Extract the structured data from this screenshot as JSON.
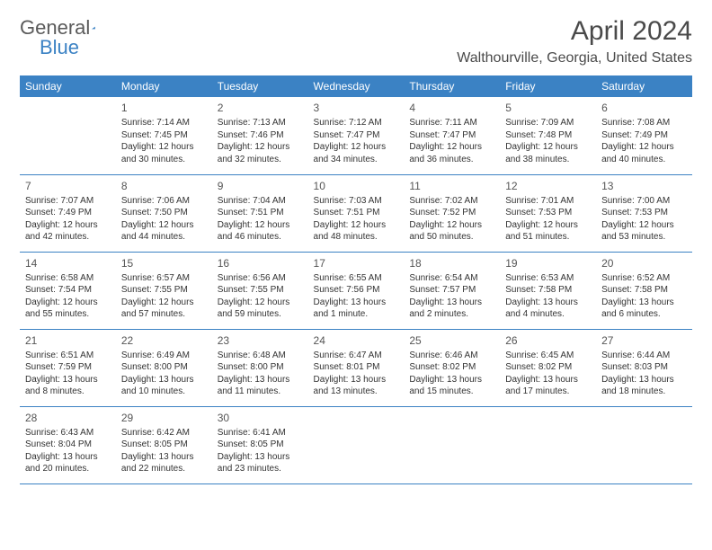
{
  "brand": {
    "part1": "General",
    "part2": "Blue"
  },
  "title": "April 2024",
  "location": "Walthourville, Georgia, United States",
  "colors": {
    "accent": "#3b82c4",
    "text": "#333333",
    "header_text": "#ffffff",
    "bg": "#ffffff"
  },
  "day_headers": [
    "Sunday",
    "Monday",
    "Tuesday",
    "Wednesday",
    "Thursday",
    "Friday",
    "Saturday"
  ],
  "weeks": [
    [
      null,
      {
        "n": "1",
        "sr": "7:14 AM",
        "ss": "7:45 PM",
        "dl": "12 hours and 30 minutes."
      },
      {
        "n": "2",
        "sr": "7:13 AM",
        "ss": "7:46 PM",
        "dl": "12 hours and 32 minutes."
      },
      {
        "n": "3",
        "sr": "7:12 AM",
        "ss": "7:47 PM",
        "dl": "12 hours and 34 minutes."
      },
      {
        "n": "4",
        "sr": "7:11 AM",
        "ss": "7:47 PM",
        "dl": "12 hours and 36 minutes."
      },
      {
        "n": "5",
        "sr": "7:09 AM",
        "ss": "7:48 PM",
        "dl": "12 hours and 38 minutes."
      },
      {
        "n": "6",
        "sr": "7:08 AM",
        "ss": "7:49 PM",
        "dl": "12 hours and 40 minutes."
      }
    ],
    [
      {
        "n": "7",
        "sr": "7:07 AM",
        "ss": "7:49 PM",
        "dl": "12 hours and 42 minutes."
      },
      {
        "n": "8",
        "sr": "7:06 AM",
        "ss": "7:50 PM",
        "dl": "12 hours and 44 minutes."
      },
      {
        "n": "9",
        "sr": "7:04 AM",
        "ss": "7:51 PM",
        "dl": "12 hours and 46 minutes."
      },
      {
        "n": "10",
        "sr": "7:03 AM",
        "ss": "7:51 PM",
        "dl": "12 hours and 48 minutes."
      },
      {
        "n": "11",
        "sr": "7:02 AM",
        "ss": "7:52 PM",
        "dl": "12 hours and 50 minutes."
      },
      {
        "n": "12",
        "sr": "7:01 AM",
        "ss": "7:53 PM",
        "dl": "12 hours and 51 minutes."
      },
      {
        "n": "13",
        "sr": "7:00 AM",
        "ss": "7:53 PM",
        "dl": "12 hours and 53 minutes."
      }
    ],
    [
      {
        "n": "14",
        "sr": "6:58 AM",
        "ss": "7:54 PM",
        "dl": "12 hours and 55 minutes."
      },
      {
        "n": "15",
        "sr": "6:57 AM",
        "ss": "7:55 PM",
        "dl": "12 hours and 57 minutes."
      },
      {
        "n": "16",
        "sr": "6:56 AM",
        "ss": "7:55 PM",
        "dl": "12 hours and 59 minutes."
      },
      {
        "n": "17",
        "sr": "6:55 AM",
        "ss": "7:56 PM",
        "dl": "13 hours and 1 minute."
      },
      {
        "n": "18",
        "sr": "6:54 AM",
        "ss": "7:57 PM",
        "dl": "13 hours and 2 minutes."
      },
      {
        "n": "19",
        "sr": "6:53 AM",
        "ss": "7:58 PM",
        "dl": "13 hours and 4 minutes."
      },
      {
        "n": "20",
        "sr": "6:52 AM",
        "ss": "7:58 PM",
        "dl": "13 hours and 6 minutes."
      }
    ],
    [
      {
        "n": "21",
        "sr": "6:51 AM",
        "ss": "7:59 PM",
        "dl": "13 hours and 8 minutes."
      },
      {
        "n": "22",
        "sr": "6:49 AM",
        "ss": "8:00 PM",
        "dl": "13 hours and 10 minutes."
      },
      {
        "n": "23",
        "sr": "6:48 AM",
        "ss": "8:00 PM",
        "dl": "13 hours and 11 minutes."
      },
      {
        "n": "24",
        "sr": "6:47 AM",
        "ss": "8:01 PM",
        "dl": "13 hours and 13 minutes."
      },
      {
        "n": "25",
        "sr": "6:46 AM",
        "ss": "8:02 PM",
        "dl": "13 hours and 15 minutes."
      },
      {
        "n": "26",
        "sr": "6:45 AM",
        "ss": "8:02 PM",
        "dl": "13 hours and 17 minutes."
      },
      {
        "n": "27",
        "sr": "6:44 AM",
        "ss": "8:03 PM",
        "dl": "13 hours and 18 minutes."
      }
    ],
    [
      {
        "n": "28",
        "sr": "6:43 AM",
        "ss": "8:04 PM",
        "dl": "13 hours and 20 minutes."
      },
      {
        "n": "29",
        "sr": "6:42 AM",
        "ss": "8:05 PM",
        "dl": "13 hours and 22 minutes."
      },
      {
        "n": "30",
        "sr": "6:41 AM",
        "ss": "8:05 PM",
        "dl": "13 hours and 23 minutes."
      },
      null,
      null,
      null,
      null
    ]
  ],
  "labels": {
    "sunrise": "Sunrise:",
    "sunset": "Sunset:",
    "daylight": "Daylight:"
  }
}
